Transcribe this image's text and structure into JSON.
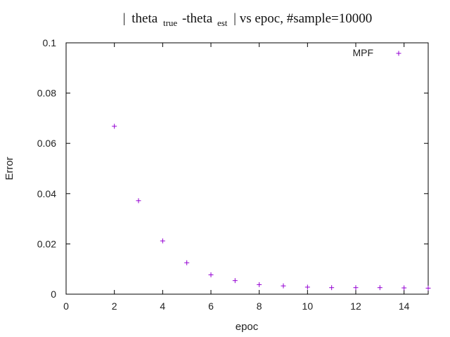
{
  "chart_data": {
    "type": "scatter",
    "title": {
      "bar_left": "|",
      "part1": "theta",
      "sub1": "true",
      "part2": "-theta",
      "sub2": "est",
      "part3": "| vs epoc, #sample=10000"
    },
    "xlabel": "epoc",
    "ylabel": "Error",
    "xlim": [
      0,
      15
    ],
    "ylim": [
      0,
      0.1
    ],
    "xticks": [
      "0",
      "2",
      "4",
      "6",
      "8",
      "10",
      "12",
      "14"
    ],
    "xtick_values": [
      0,
      2,
      4,
      6,
      8,
      10,
      12,
      14
    ],
    "yticks": [
      "0",
      "0.02",
      "0.04",
      "0.06",
      "0.08",
      "0.1"
    ],
    "ytick_values": [
      0,
      0.02,
      0.04,
      0.06,
      0.08,
      0.1
    ],
    "grid": false,
    "legend_position": "top-right",
    "series": [
      {
        "name": "MPF",
        "color": "#9400d3",
        "marker": "plus",
        "x": [
          2,
          3,
          4,
          5,
          6,
          7,
          8,
          9,
          10,
          11,
          12,
          13,
          14,
          15
        ],
        "y": [
          0.0668,
          0.0372,
          0.0212,
          0.0125,
          0.0077,
          0.0054,
          0.0038,
          0.0033,
          0.0028,
          0.0026,
          0.0026,
          0.0026,
          0.0025,
          0.0024
        ]
      }
    ]
  }
}
